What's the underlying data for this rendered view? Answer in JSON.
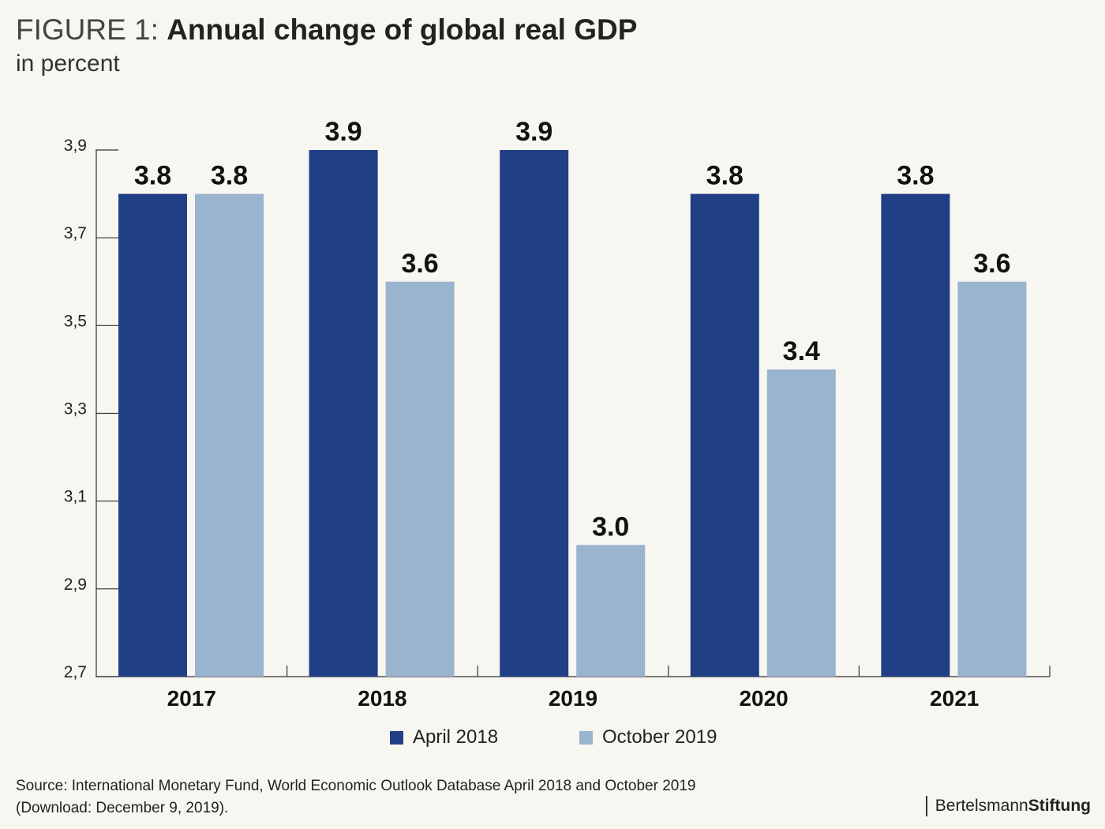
{
  "header": {
    "figure_label": "FIGURE 1:",
    "title": "Annual change of global real GDP",
    "subtitle": "in percent"
  },
  "chart_data": {
    "type": "bar",
    "title": "Annual change of global real GDP",
    "subtitle": "in percent",
    "categories": [
      "2017",
      "2018",
      "2019",
      "2020",
      "2021"
    ],
    "series": [
      {
        "name": "April 2018",
        "color": "#213f85",
        "values": [
          3.8,
          3.9,
          3.9,
          3.8,
          3.8
        ],
        "labels": [
          "3.8",
          "3.9",
          "3.9",
          "3.8",
          "3.8"
        ]
      },
      {
        "name": "October 2019",
        "color": "#9ab3ce",
        "values": [
          3.8,
          3.6,
          3.0,
          3.4,
          3.6
        ],
        "labels": [
          "3.8",
          "3.6",
          "3.0",
          "3.4",
          "3.6"
        ]
      }
    ],
    "ylim": [
      2.7,
      3.9
    ],
    "yticks": [
      2.7,
      2.9,
      3.1,
      3.3,
      3.5,
      3.7,
      3.9
    ],
    "ytick_labels": [
      "2,7",
      "2,9",
      "3,1",
      "3,3",
      "3,5",
      "3,7",
      "3,9"
    ],
    "legend_position": "bottom",
    "grid": false
  },
  "legend": {
    "items": [
      {
        "label": "April 2018",
        "color": "#213f85"
      },
      {
        "label": "October 2019",
        "color": "#9ab3ce"
      }
    ]
  },
  "footer": {
    "source_line1": "Source: International Monetary Fund, World Economic Outlook Database April 2018 and October 2019",
    "source_line2": "(Download: December 9, 2019).",
    "brand_regular": "Bertelsmann",
    "brand_bold": "Stiftung"
  }
}
